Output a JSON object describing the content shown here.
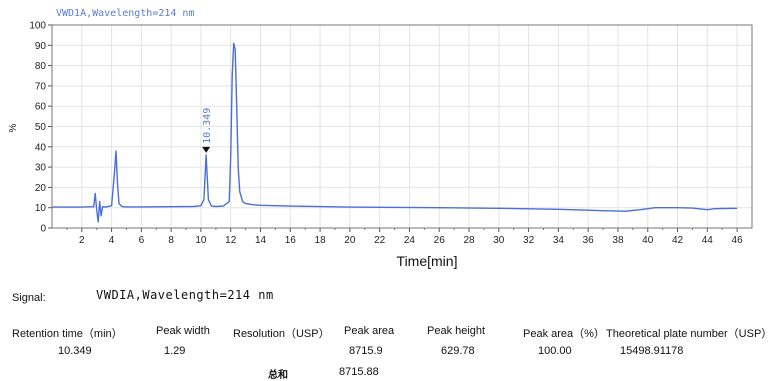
{
  "chart_data": {
    "type": "line",
    "title": "VWD1A,Wavelength=214 nm",
    "xlabel": "Time[min]",
    "ylabel": "%",
    "xlim": [
      0,
      47
    ],
    "ylim": [
      0,
      100
    ],
    "x_ticks": [
      2,
      4,
      6,
      8,
      10,
      12,
      14,
      16,
      18,
      20,
      22,
      24,
      26,
      28,
      30,
      32,
      34,
      36,
      38,
      40,
      42,
      44,
      46
    ],
    "y_ticks": [
      0,
      10,
      20,
      30,
      40,
      50,
      60,
      70,
      80,
      90,
      100
    ],
    "grid": true,
    "line_color": "#4a6fd8",
    "annotations": [
      {
        "text": "10.349",
        "x": 10.349,
        "y": 37
      }
    ],
    "series": [
      {
        "x": [
          0,
          2,
          2.8,
          2.9,
          3.0,
          3.1,
          3.2,
          3.3,
          3.4,
          3.6,
          4.0,
          4.2,
          4.3,
          4.4,
          4.5,
          4.7,
          5.0,
          6,
          8,
          9.5,
          10.0,
          10.2,
          10.35,
          10.5,
          10.7,
          11.0,
          11.5,
          11.9,
          12.0,
          12.1,
          12.2,
          12.3,
          12.4,
          12.5,
          12.6,
          12.8,
          13.0,
          13.5,
          14,
          16,
          20,
          26,
          30,
          34,
          37,
          38.5,
          39.5,
          40.5,
          42,
          43,
          44,
          44.5,
          45,
          46
        ],
        "values": [
          10.3,
          10.3,
          10.5,
          17,
          9,
          3,
          13,
          6,
          10.5,
          10.3,
          11,
          28,
          38,
          22,
          12,
          10.6,
          10.4,
          10.4,
          10.5,
          10.6,
          11,
          14,
          36,
          14,
          10.8,
          10.6,
          10.8,
          13,
          35,
          75,
          91,
          88,
          60,
          30,
          18,
          13,
          12,
          11.5,
          11.2,
          10.8,
          10.3,
          10,
          9.7,
          9.2,
          8.5,
          8.3,
          9,
          10,
          10,
          9.8,
          9,
          9.5,
          9.6,
          9.7
        ]
      }
    ]
  },
  "results": {
    "signal_label": "Signal:",
    "signal_value": "VWDIA,Wavelength=214 nm",
    "headers": {
      "retention_time": "Retention time（min）",
      "peak_width": "Peak width",
      "resolution": "Resolution（USP）",
      "peak_area": "Peak area",
      "peak_height": "Peak height",
      "peak_area_pct": "Peak area（%）",
      "plate_number": "Theoretical plate number（USP）"
    },
    "row": {
      "retention_time": "10.349",
      "peak_width": "1.29",
      "resolution": "",
      "peak_area": "8715.9",
      "peak_height": "629.78",
      "peak_area_pct": "100.00",
      "plate_number": "15498.91178"
    },
    "sum_label": "总和",
    "sum_value": "8715.88"
  }
}
